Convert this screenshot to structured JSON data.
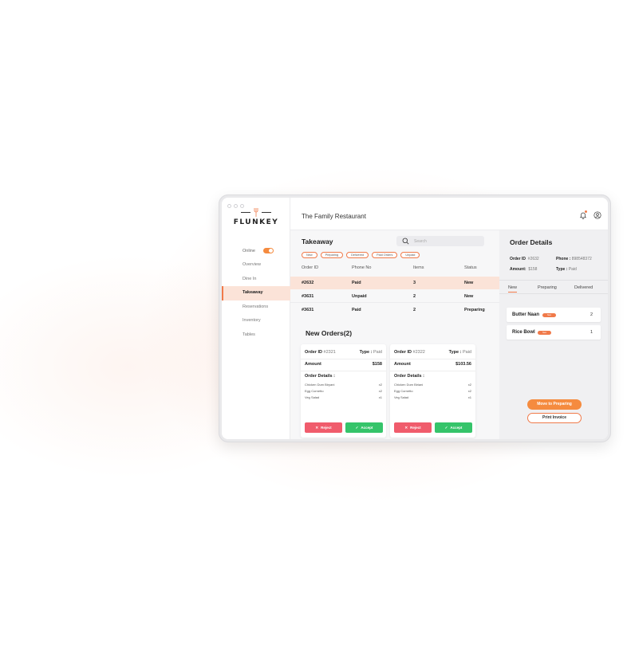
{
  "brand": {
    "logo_text": "FLUNKEY"
  },
  "header": {
    "restaurant_name": "The Family Restaurant"
  },
  "sidebar": {
    "online_label": "Online",
    "online_enabled": true,
    "items": [
      {
        "label": "Overview"
      },
      {
        "label": "Dine In"
      },
      {
        "label": "Takeaway"
      },
      {
        "label": "Reservations"
      },
      {
        "label": "Inventory"
      },
      {
        "label": "Tables"
      }
    ],
    "active_item": "Takeaway"
  },
  "main": {
    "title": "Takeaway",
    "search": {
      "placeholder": "Search"
    },
    "filters": [
      "New",
      "Preparing",
      "Delivered",
      "Paid Orders",
      "Unpaid"
    ],
    "table": {
      "headers": [
        "Order ID",
        "Phone No",
        "Items",
        "Status"
      ],
      "rows": [
        {
          "order_id": "#2632",
          "phone": "Paid",
          "items": "3",
          "status": "New"
        },
        {
          "order_id": "#3631",
          "phone": "Unpaid",
          "items": "2",
          "status": "New"
        },
        {
          "order_id": "#3631",
          "phone": "Paid",
          "items": "2",
          "status": "Preparing"
        }
      ]
    },
    "new_orders_title": "New Orders(2)",
    "cards": [
      {
        "order_id_label": "Order ID",
        "order_id": "#2321",
        "type_label": "Type :",
        "type": "Paid",
        "amount_label": "Amount",
        "amount": "$158",
        "details_label": "Order Details :",
        "items": [
          {
            "name": "Chicken Dum Biryani",
            "qty": "x2"
          },
          {
            "name": "Egg Cornetto",
            "qty": "x2"
          },
          {
            "name": "Veg Salad",
            "qty": "x1"
          }
        ],
        "reject_label": "Reject",
        "accept_label": "Accept"
      },
      {
        "order_id_label": "Order ID",
        "order_id": "#2322",
        "type_label": "Type :",
        "type": "Paid",
        "amount_label": "Amount",
        "amount": "$103.56",
        "details_label": "Order Details :",
        "items": [
          {
            "name": "Chicken Dum Biriani",
            "qty": "x2"
          },
          {
            "name": "Egg Cornetto",
            "qty": "x2"
          },
          {
            "name": "Veg Salad",
            "qty": "x1"
          }
        ],
        "reject_label": "Reject",
        "accept_label": "Accept"
      }
    ]
  },
  "order_details": {
    "title": "Order Details",
    "order_id_label": "Order ID",
    "order_id": "#2632",
    "phone_label": "Phone :",
    "phone": "898548372",
    "amount_label": "Amount:",
    "amount": "$158",
    "type_label": "Type :",
    "type": "Paid",
    "tabs": [
      "New",
      "Preparing",
      "Delivered"
    ],
    "active_tab": "New",
    "items": [
      {
        "name": "Butter Naan",
        "tag": "New",
        "qty": "2"
      },
      {
        "name": "Rice Bowl",
        "tag": "New",
        "qty": "1"
      }
    ],
    "move_button": "Move to Preparing",
    "print_button": "Print Invoice"
  },
  "colors": {
    "accent": "#f07a4a",
    "accent_orange": "#f58b3f",
    "reject": "#f05c6c",
    "accept": "#35c46a",
    "active_bg": "#fbe3d8"
  }
}
